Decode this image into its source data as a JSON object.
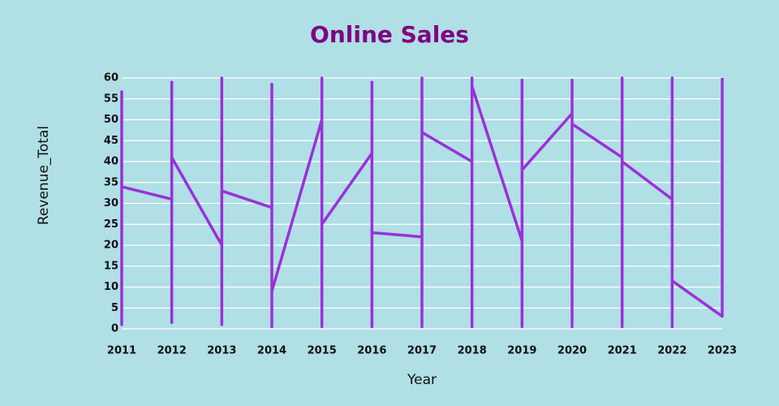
{
  "chart_data": {
    "type": "line",
    "title": "Online Sales",
    "x_label": "Year",
    "y_label": "Revenue_Total",
    "x": [
      2011,
      2011,
      2011,
      2012,
      2012,
      2012,
      2012,
      2013,
      2013,
      2013,
      2013,
      2014,
      2014,
      2014,
      2014,
      2015,
      2015,
      2015,
      2015,
      2016,
      2016,
      2016,
      2016,
      2017,
      2017,
      2017,
      2017,
      2018,
      2018,
      2018,
      2018,
      2019,
      2019,
      2019,
      2019,
      2020,
      2020,
      2020,
      2020,
      2021,
      2021,
      2021,
      2021,
      2022,
      2022,
      2022,
      2022,
      2023,
      2023
    ],
    "values": [
      57,
      1,
      34,
      31,
      59,
      1.5,
      41,
      20,
      60,
      1,
      33,
      29,
      58.5,
      0.5,
      9,
      50,
      60,
      0.5,
      25,
      42,
      59,
      0.5,
      23,
      22,
      60,
      0.5,
      47,
      40,
      0.5,
      60,
      58,
      21,
      59.5,
      0.5,
      38,
      51.5,
      59.5,
      0.5,
      49,
      41,
      60,
      0.5,
      40,
      31,
      60,
      0.5,
      11.5,
      3,
      60
    ],
    "color": "#9b30d9",
    "xlim": [
      2011,
      2023
    ],
    "xticks": [
      2011,
      2012,
      2013,
      2014,
      2015,
      2016,
      2017,
      2018,
      2019,
      2020,
      2021,
      2022,
      2023
    ],
    "ylim": [
      0,
      60
    ],
    "yticks": [
      0,
      5,
      10,
      15,
      20,
      25,
      30,
      35,
      40,
      45,
      50,
      55,
      60
    ],
    "grid": true
  }
}
